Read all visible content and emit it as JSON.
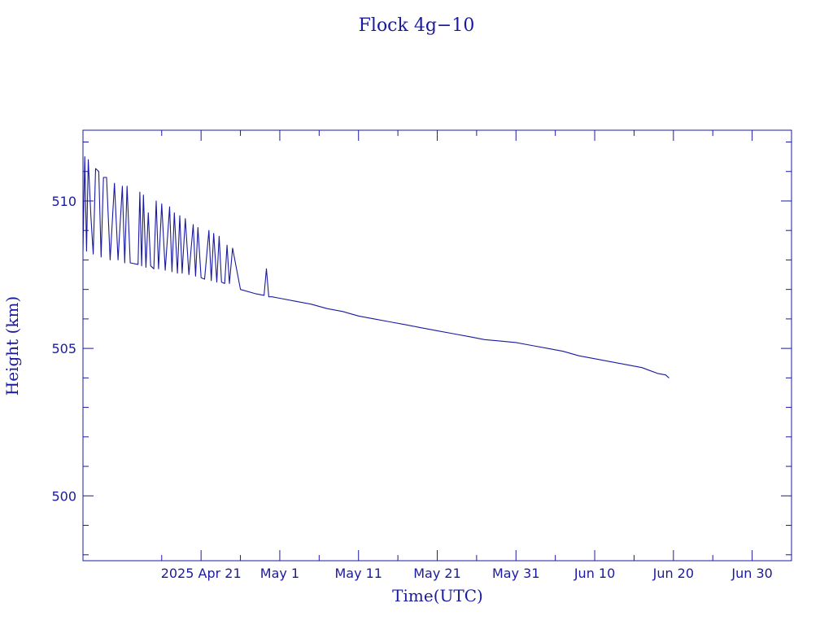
{
  "chart_data": {
    "type": "line",
    "title": "Flock 4g−10",
    "xlabel": "Time(UTC)",
    "ylabel": "Height (km)",
    "xlim": [
      "2025-04-06",
      "2025-07-05"
    ],
    "ylim": [
      497.8,
      512.4
    ],
    "x_ticks": [
      {
        "date": "2025-04-21",
        "label": "2025 Apr 21"
      },
      {
        "date": "2025-05-01",
        "label": "May  1"
      },
      {
        "date": "2025-05-11",
        "label": "May 11"
      },
      {
        "date": "2025-05-21",
        "label": "May 21"
      },
      {
        "date": "2025-05-31",
        "label": "May 31"
      },
      {
        "date": "2025-06-10",
        "label": "Jun 10"
      },
      {
        "date": "2025-06-20",
        "label": "Jun 20"
      },
      {
        "date": "2025-06-30",
        "label": "Jun 30"
      }
    ],
    "x_minor_ticks": [
      "2025-04-16",
      "2025-04-26",
      "2025-05-06",
      "2025-05-16",
      "2025-05-26",
      "2025-06-05",
      "2025-06-15",
      "2025-06-25",
      "2025-07-05"
    ],
    "y_ticks": [
      {
        "value": 500,
        "label": "500"
      },
      {
        "value": 505,
        "label": "505"
      },
      {
        "value": 510,
        "label": "510"
      }
    ],
    "y_minor_step": 1,
    "grid": false,
    "series": [
      {
        "color": "#1a1aa0",
        "points": [
          [
            "2025-04-06",
            508.3
          ],
          [
            "2025-04-06",
            511.5
          ],
          [
            "2025-04-06",
            508.3
          ],
          [
            "2025-04-06",
            511.4
          ],
          [
            "2025-04-07",
            509.5
          ],
          [
            "2025-04-07",
            508.2
          ],
          [
            "2025-04-07",
            511.1
          ],
          [
            "2025-04-08",
            511.0
          ],
          [
            "2025-04-08",
            508.1
          ],
          [
            "2025-04-08",
            510.8
          ],
          [
            "2025-04-09",
            510.8
          ],
          [
            "2025-04-09",
            508.0
          ],
          [
            "2025-04-10",
            510.6
          ],
          [
            "2025-04-10",
            508.0
          ],
          [
            "2025-04-11",
            510.5
          ],
          [
            "2025-04-11",
            507.9
          ],
          [
            "2025-04-11",
            510.5
          ],
          [
            "2025-04-12",
            507.9
          ],
          [
            "2025-04-13",
            507.85
          ],
          [
            "2025-04-13",
            510.3
          ],
          [
            "2025-04-13",
            507.8
          ],
          [
            "2025-04-13",
            510.2
          ],
          [
            "2025-04-14",
            507.75
          ],
          [
            "2025-04-14",
            509.6
          ],
          [
            "2025-04-14",
            507.8
          ],
          [
            "2025-04-15",
            507.7
          ],
          [
            "2025-04-15",
            510.0
          ],
          [
            "2025-04-15",
            507.7
          ],
          [
            "2025-04-16",
            509.9
          ],
          [
            "2025-04-16",
            507.65
          ],
          [
            "2025-04-17",
            509.8
          ],
          [
            "2025-04-17",
            507.6
          ],
          [
            "2025-04-17",
            509.6
          ],
          [
            "2025-04-18",
            507.55
          ],
          [
            "2025-04-18",
            509.5
          ],
          [
            "2025-04-18",
            507.55
          ],
          [
            "2025-04-19",
            509.4
          ],
          [
            "2025-04-19",
            507.5
          ],
          [
            "2025-04-20",
            509.2
          ],
          [
            "2025-04-20",
            507.45
          ],
          [
            "2025-04-20",
            509.1
          ],
          [
            "2025-04-21",
            507.4
          ],
          [
            "2025-04-21",
            507.35
          ],
          [
            "2025-04-22",
            509.0
          ],
          [
            "2025-04-22",
            507.3
          ],
          [
            "2025-04-22",
            508.9
          ],
          [
            "2025-04-23",
            507.25
          ],
          [
            "2025-04-23",
            508.8
          ],
          [
            "2025-04-23",
            507.25
          ],
          [
            "2025-04-24",
            507.2
          ],
          [
            "2025-04-24",
            508.5
          ],
          [
            "2025-04-24",
            507.2
          ],
          [
            "2025-04-25",
            508.4
          ],
          [
            "2025-04-26",
            507.0
          ],
          [
            "2025-04-28",
            506.85
          ],
          [
            "2025-04-29",
            506.8
          ],
          [
            "2025-04-29",
            507.7
          ],
          [
            "2025-04-29",
            506.75
          ],
          [
            "2025-04-30",
            506.75
          ],
          [
            "2025-05-01",
            506.7
          ],
          [
            "2025-05-03",
            506.6
          ],
          [
            "2025-05-05",
            506.5
          ],
          [
            "2025-05-07",
            506.35
          ],
          [
            "2025-05-09",
            506.25
          ],
          [
            "2025-05-11",
            506.1
          ],
          [
            "2025-05-13",
            506.0
          ],
          [
            "2025-05-15",
            505.9
          ],
          [
            "2025-05-17",
            505.8
          ],
          [
            "2025-05-19",
            505.7
          ],
          [
            "2025-05-21",
            505.6
          ],
          [
            "2025-05-23",
            505.5
          ],
          [
            "2025-05-25",
            505.4
          ],
          [
            "2025-05-27",
            505.3
          ],
          [
            "2025-05-29",
            505.25
          ],
          [
            "2025-05-31",
            505.2
          ],
          [
            "2025-06-02",
            505.1
          ],
          [
            "2025-06-04",
            505.0
          ],
          [
            "2025-06-06",
            504.9
          ],
          [
            "2025-06-08",
            504.75
          ],
          [
            "2025-06-10",
            504.65
          ],
          [
            "2025-06-12",
            504.55
          ],
          [
            "2025-06-14",
            504.45
          ],
          [
            "2025-06-16",
            504.35
          ],
          [
            "2025-06-17",
            504.25
          ],
          [
            "2025-06-18",
            504.15
          ],
          [
            "2025-06-19",
            504.1
          ],
          [
            "2025-06-19",
            504.0
          ]
        ]
      }
    ]
  }
}
